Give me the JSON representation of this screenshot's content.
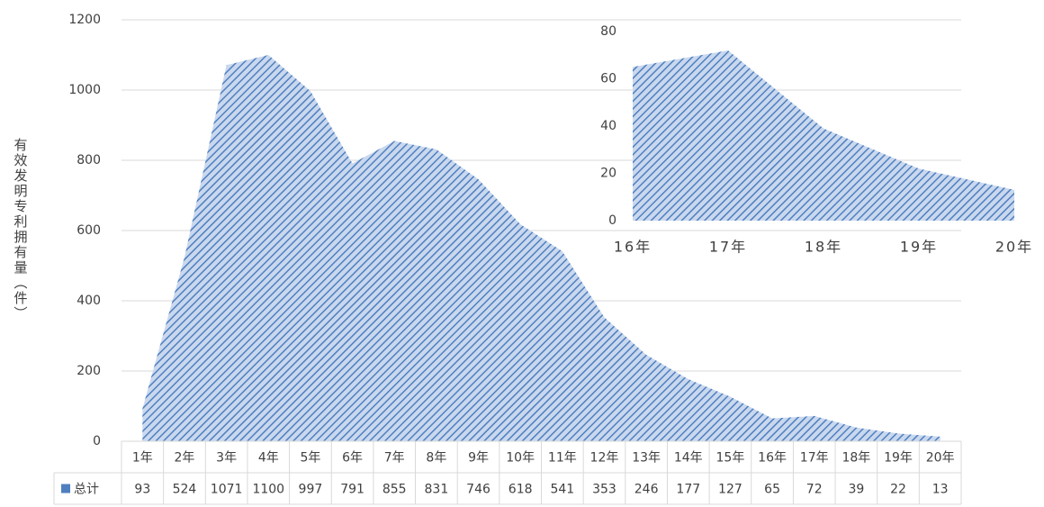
{
  "chart_data": [
    {
      "type": "area",
      "y_label": "有效发明专利拥有量（件）",
      "categories": [
        "1年",
        "2年",
        "3年",
        "4年",
        "5年",
        "6年",
        "7年",
        "8年",
        "9年",
        "10年",
        "11年",
        "12年",
        "13年",
        "14年",
        "15年",
        "16年",
        "17年",
        "18年",
        "19年",
        "20年"
      ],
      "series": [
        {
          "name": "总计",
          "color": "#4f7fbf",
          "values": [
            93,
            524,
            1071,
            1100,
            997,
            791,
            855,
            831,
            746,
            618,
            541,
            353,
            246,
            177,
            127,
            65,
            72,
            39,
            22,
            13
          ]
        }
      ],
      "ylim": [
        0,
        1200
      ],
      "yticks": [
        0,
        200,
        400,
        600,
        800,
        1000,
        1200
      ],
      "grid": true,
      "data_table": true
    },
    {
      "type": "area",
      "categories": [
        "16年",
        "17年",
        "18年",
        "19年",
        "20年"
      ],
      "series": [
        {
          "color": "#4f7fbf",
          "values": [
            65,
            72,
            39,
            22,
            13
          ]
        }
      ],
      "ylim": [
        0,
        80
      ],
      "yticks": [
        0,
        20,
        40,
        60,
        80
      ],
      "grid": false,
      "data_table": false
    }
  ]
}
